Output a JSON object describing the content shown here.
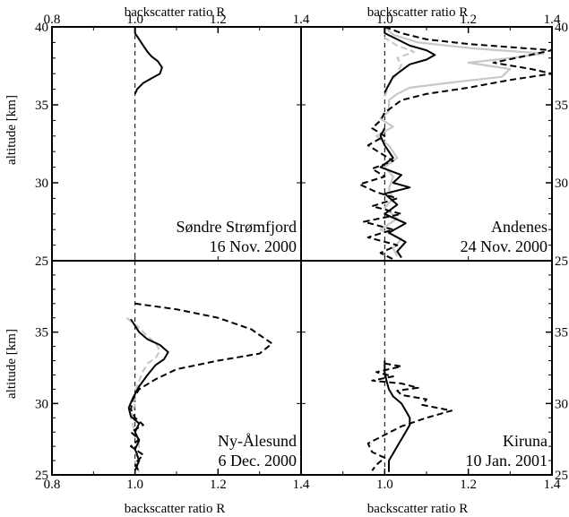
{
  "figure": {
    "x_axis_label": "backscatter ratio R",
    "y_axis_label": "altitude [km]",
    "x_ticks": [
      "0.8",
      "1.0",
      "1.2",
      "1.4"
    ],
    "y_ticks": [
      "25",
      "30",
      "35",
      "40"
    ]
  },
  "colors": {
    "black": "#000000",
    "grey": "#c8c8c8"
  },
  "chart_data": [
    {
      "type": "line",
      "panel": "top-left",
      "station": "Søndre Strømfjord",
      "date": "16 Nov. 2000",
      "xlim": [
        0.8,
        1.4
      ],
      "ylim": [
        25,
        40
      ],
      "reference_line_x": 1.0,
      "series": [
        {
          "style": "solid",
          "color": "#000000",
          "points": [
            [
              1.0,
              40.0
            ],
            [
              1.0,
              39.6
            ],
            [
              1.01,
              39.2
            ],
            [
              1.02,
              38.8
            ],
            [
              1.03,
              38.4
            ],
            [
              1.04,
              38.1
            ],
            [
              1.055,
              37.8
            ],
            [
              1.065,
              37.4
            ],
            [
              1.06,
              37.0
            ],
            [
              1.04,
              36.7
            ],
            [
              1.02,
              36.4
            ],
            [
              1.005,
              36.0
            ],
            [
              1.0,
              35.7
            ]
          ]
        }
      ]
    },
    {
      "type": "line",
      "panel": "top-right",
      "station": "Andenes",
      "date": "24 Nov. 2000",
      "xlim": [
        0.8,
        1.4
      ],
      "ylim": [
        25,
        40
      ],
      "reference_line_x": 1.0,
      "series": [
        {
          "style": "solid-grey",
          "color": "#c8c8c8",
          "points": [
            [
              1.0,
              40.0
            ],
            [
              1.02,
              39.5
            ],
            [
              1.08,
              39.0
            ],
            [
              1.22,
              38.6
            ],
            [
              1.38,
              38.3
            ],
            [
              1.3,
              38.0
            ],
            [
              1.2,
              37.7
            ],
            [
              1.3,
              37.3
            ],
            [
              1.28,
              36.8
            ],
            [
              1.15,
              36.4
            ],
            [
              1.06,
              36.1
            ],
            [
              1.03,
              35.7
            ],
            [
              1.01,
              35.3
            ],
            [
              1.01,
              34.6
            ],
            [
              0.99,
              34.1
            ],
            [
              1.02,
              33.6
            ],
            [
              0.98,
              33.0
            ],
            [
              1.01,
              32.4
            ],
            [
              1.03,
              31.6
            ],
            [
              1.0,
              31.0
            ],
            [
              1.02,
              30.4
            ],
            [
              1.01,
              29.6
            ],
            [
              1.02,
              29.0
            ],
            [
              1.0,
              28.4
            ],
            [
              1.03,
              27.7
            ],
            [
              0.99,
              27.0
            ],
            [
              1.04,
              26.4
            ],
            [
              1.02,
              25.8
            ],
            [
              1.03,
              25.3
            ]
          ]
        },
        {
          "style": "dashed-grey",
          "color": "#c8c8c8",
          "points": [
            [
              1.0,
              40.0
            ],
            [
              1.0,
              39.3
            ],
            [
              1.03,
              38.8
            ],
            [
              1.07,
              38.4
            ],
            [
              1.03,
              38.0
            ],
            [
              1.04,
              37.6
            ],
            [
              1.03,
              37.0
            ],
            [
              1.01,
              36.3
            ],
            [
              1.0,
              35.5
            ]
          ]
        },
        {
          "style": "solid",
          "color": "#000000",
          "points": [
            [
              1.0,
              40.0
            ],
            [
              1.0,
              39.6
            ],
            [
              1.03,
              39.2
            ],
            [
              1.06,
              38.8
            ],
            [
              1.1,
              38.5
            ],
            [
              1.12,
              38.2
            ],
            [
              1.1,
              37.9
            ],
            [
              1.06,
              37.6
            ],
            [
              1.04,
              37.2
            ],
            [
              1.02,
              36.8
            ],
            [
              1.01,
              36.3
            ],
            [
              1.0,
              35.8
            ]
          ]
        },
        {
          "style": "solid",
          "color": "#000000",
          "points": [
            [
              1.0,
              33.5
            ],
            [
              0.99,
              33.0
            ],
            [
              1.0,
              32.4
            ],
            [
              1.02,
              31.6
            ],
            [
              0.99,
              31.0
            ],
            [
              1.04,
              30.5
            ],
            [
              1.02,
              30.0
            ],
            [
              1.06,
              29.7
            ],
            [
              1.0,
              29.3
            ],
            [
              1.03,
              28.6
            ],
            [
              1.0,
              28.0
            ],
            [
              1.05,
              27.4
            ],
            [
              1.01,
              26.8
            ],
            [
              1.05,
              26.2
            ],
            [
              1.03,
              25.6
            ],
            [
              1.04,
              25.2
            ]
          ]
        },
        {
          "style": "dashed",
          "color": "#000000",
          "points": [
            [
              1.0,
              40.0
            ],
            [
              1.04,
              39.6
            ],
            [
              1.1,
              39.2
            ],
            [
              1.2,
              38.9
            ],
            [
              1.3,
              38.7
            ],
            [
              1.4,
              38.5
            ],
            [
              1.33,
              38.1
            ],
            [
              1.26,
              37.7
            ],
            [
              1.35,
              37.3
            ],
            [
              1.4,
              37.0
            ],
            [
              1.3,
              36.6
            ],
            [
              1.2,
              36.1
            ],
            [
              1.1,
              35.7
            ],
            [
              1.04,
              35.3
            ],
            [
              1.02,
              34.9
            ],
            [
              1.0,
              34.5
            ],
            [
              0.99,
              34.0
            ],
            [
              0.97,
              33.5
            ],
            [
              1.0,
              33.0
            ],
            [
              0.96,
              32.4
            ],
            [
              0.99,
              31.9
            ],
            [
              1.02,
              31.4
            ],
            [
              0.97,
              30.9
            ],
            [
              1.0,
              30.4
            ],
            [
              0.94,
              29.9
            ],
            [
              0.98,
              29.4
            ],
            [
              1.03,
              29.0
            ],
            [
              0.97,
              28.5
            ],
            [
              1.04,
              28.0
            ],
            [
              0.95,
              27.5
            ],
            [
              1.02,
              27.0
            ],
            [
              0.96,
              26.5
            ],
            [
              1.03,
              26.0
            ],
            [
              0.99,
              25.5
            ],
            [
              1.02,
              25.1
            ]
          ]
        }
      ]
    },
    {
      "type": "line",
      "panel": "bottom-left",
      "station": "Ny-Ålesund",
      "date": "6 Dec. 2000",
      "xlim": [
        0.8,
        1.4
      ],
      "ylim": [
        25,
        40
      ],
      "reference_line_x": 1.0,
      "series": [
        {
          "style": "dashed-grey",
          "color": "#c8c8c8",
          "points": [
            [
              0.98,
              36.0
            ],
            [
              1.01,
              35.3
            ],
            [
              1.03,
              34.7
            ],
            [
              1.05,
              34.2
            ],
            [
              1.06,
              33.7
            ],
            [
              1.05,
              33.2
            ],
            [
              1.03,
              32.8
            ],
            [
              1.02,
              32.3
            ],
            [
              1.01,
              31.6
            ],
            [
              1.0,
              30.8
            ],
            [
              1.0,
              30.0
            ],
            [
              0.99,
              29.0
            ],
            [
              1.0,
              28.0
            ],
            [
              1.01,
              27.0
            ],
            [
              1.0,
              26.0
            ],
            [
              1.01,
              25.2
            ]
          ]
        },
        {
          "style": "solid",
          "color": "#000000",
          "points": [
            [
              0.99,
              35.9
            ],
            [
              1.01,
              35.0
            ],
            [
              1.03,
              34.5
            ],
            [
              1.06,
              34.1
            ],
            [
              1.08,
              33.6
            ],
            [
              1.07,
              33.1
            ],
            [
              1.05,
              32.7
            ],
            [
              1.03,
              32.0
            ],
            [
              1.01,
              31.2
            ],
            [
              0.995,
              30.4
            ],
            [
              0.985,
              29.7
            ],
            [
              0.99,
              29.1
            ],
            [
              1.01,
              28.6
            ],
            [
              1.0,
              28.0
            ],
            [
              1.01,
              27.4
            ],
            [
              1.0,
              26.8
            ],
            [
              1.01,
              26.0
            ],
            [
              1.0,
              25.3
            ]
          ]
        },
        {
          "style": "dashed",
          "color": "#000000",
          "points": [
            [
              1.0,
              37.0
            ],
            [
              1.1,
              36.6
            ],
            [
              1.2,
              36.0
            ],
            [
              1.28,
              35.2
            ],
            [
              1.33,
              34.2
            ],
            [
              1.3,
              33.5
            ],
            [
              1.2,
              33.0
            ],
            [
              1.1,
              32.4
            ],
            [
              1.05,
              31.7
            ],
            [
              1.01,
              31.0
            ],
            [
              0.995,
              30.3
            ],
            [
              0.99,
              29.6
            ],
            [
              1.0,
              29.0
            ],
            [
              1.02,
              28.5
            ],
            [
              0.99,
              28.0
            ],
            [
              1.01,
              27.5
            ],
            [
              0.99,
              27.0
            ],
            [
              1.02,
              26.4
            ],
            [
              1.0,
              25.8
            ],
            [
              1.01,
              25.2
            ]
          ]
        }
      ]
    },
    {
      "type": "line",
      "panel": "bottom-right",
      "station": "Kiruna",
      "date": "10 Jan. 2001",
      "xlim": [
        0.8,
        1.4
      ],
      "ylim": [
        25,
        40
      ],
      "reference_line_x": 1.0,
      "series": [
        {
          "style": "solid",
          "color": "#000000",
          "points": [
            [
              1.0,
              33.0
            ],
            [
              1.0,
              32.2
            ],
            [
              1.005,
              31.5
            ],
            [
              1.01,
              31.0
            ],
            [
              1.02,
              30.5
            ],
            [
              1.04,
              30.0
            ],
            [
              1.05,
              29.5
            ],
            [
              1.06,
              29.0
            ],
            [
              1.06,
              28.5
            ],
            [
              1.05,
              28.0
            ],
            [
              1.04,
              27.5
            ],
            [
              1.03,
              27.0
            ],
            [
              1.02,
              26.5
            ],
            [
              1.01,
              26.0
            ],
            [
              1.01,
              25.2
            ]
          ]
        },
        {
          "style": "dashed",
          "color": "#000000",
          "points": [
            [
              1.0,
              32.8
            ],
            [
              1.04,
              32.6
            ],
            [
              0.98,
              32.2
            ],
            [
              1.02,
              31.9
            ],
            [
              0.97,
              31.6
            ],
            [
              1.04,
              31.4
            ],
            [
              1.08,
              31.1
            ],
            [
              1.03,
              30.9
            ],
            [
              1.04,
              30.6
            ],
            [
              1.1,
              30.3
            ],
            [
              1.09,
              29.9
            ],
            [
              1.16,
              29.5
            ],
            [
              1.1,
              29.0
            ],
            [
              1.04,
              28.4
            ],
            [
              1.0,
              27.8
            ],
            [
              0.96,
              27.2
            ],
            [
              0.97,
              26.6
            ],
            [
              1.0,
              26.2
            ],
            [
              0.98,
              25.7
            ],
            [
              0.97,
              25.3
            ]
          ]
        }
      ]
    }
  ]
}
